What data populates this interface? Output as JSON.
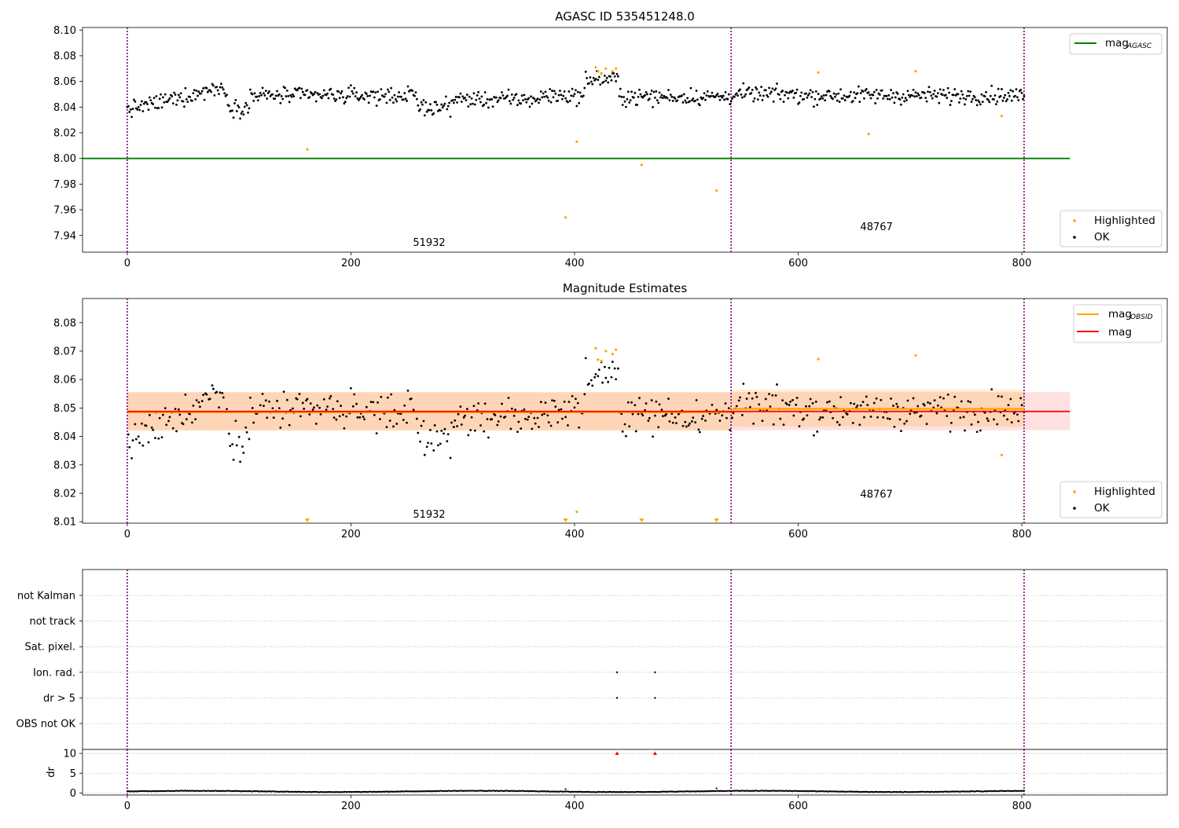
{
  "chart_data": [
    {
      "type": "scatter",
      "title": "AGASC ID 535451248.0",
      "x_ticks": [
        "0",
        "200",
        "400",
        "600",
        "800"
      ],
      "y_ticks": [
        "7.94",
        "7.96",
        "7.98",
        "8.00",
        "8.02",
        "8.04",
        "8.06",
        "8.08",
        "8.10"
      ],
      "xlim": [
        -40,
        930
      ],
      "ylim": [
        7.927,
        8.102
      ],
      "legend_lines": [
        {
          "name": "mag",
          "sub": "AGASC",
          "color": "#008000"
        }
      ],
      "legend_points": [
        {
          "name": "Highlighted",
          "color": "#ffa500"
        },
        {
          "name": "OK",
          "color": "#000000"
        }
      ],
      "agasc_mag": 8.0,
      "obsids": [
        {
          "label": "51932",
          "x": 270,
          "y": 7.932
        },
        {
          "label": "48767",
          "x": 670,
          "y": 7.944
        }
      ],
      "boundaries": [
        0,
        540,
        802
      ],
      "highlighted": [
        [
          161,
          8.007
        ],
        [
          392,
          7.954
        ],
        [
          402,
          8.013
        ],
        [
          460,
          7.995
        ],
        [
          527,
          7.975
        ],
        [
          419,
          8.071
        ],
        [
          421,
          8.068
        ],
        [
          424,
          8.066
        ],
        [
          428,
          8.07
        ],
        [
          434,
          8.068
        ],
        [
          437,
          8.07
        ],
        [
          618,
          8.067
        ],
        [
          663,
          8.019
        ],
        [
          705,
          8.068
        ],
        [
          782,
          8.033
        ]
      ]
    },
    {
      "type": "scatter",
      "title": "Magnitude Estimates",
      "x_ticks": [
        "0",
        "200",
        "400",
        "600",
        "800"
      ],
      "y_ticks": [
        "8.01",
        "8.02",
        "8.03",
        "8.04",
        "8.05",
        "8.06",
        "8.07",
        "8.08"
      ],
      "xlim": [
        -40,
        930
      ],
      "ylim": [
        8.0095,
        8.0885
      ],
      "legend_lines": [
        {
          "name": "mag",
          "sub": "OBSID",
          "color": "#ffa500"
        },
        {
          "name": "mag",
          "sub": "",
          "color": "#ff0000"
        }
      ],
      "legend_points": [
        {
          "name": "Highlighted",
          "color": "#ffa500"
        },
        {
          "name": "OK",
          "color": "#000000"
        }
      ],
      "mag": 8.0488,
      "mag_band": [
        8.0422,
        8.0556
      ],
      "obsid_mags": [
        {
          "x0": 0,
          "x1": 540,
          "mag": 8.0485,
          "lo": 8.042,
          "hi": 8.0555
        },
        {
          "x0": 540,
          "x1": 802,
          "mag": 8.0497,
          "lo": 8.0435,
          "hi": 8.0565
        }
      ],
      "obsids": [
        {
          "label": "51932",
          "x": 270,
          "y": 8.0115
        },
        {
          "label": "48767",
          "x": 670,
          "y": 8.0185
        }
      ],
      "boundaries": [
        0,
        540,
        802
      ],
      "highlighted": [
        [
          419,
          8.071
        ],
        [
          421,
          8.067
        ],
        [
          424,
          8.0665
        ],
        [
          428,
          8.07
        ],
        [
          434,
          8.069
        ],
        [
          437,
          8.0705
        ],
        [
          618,
          8.0672
        ],
        [
          663,
          8.019
        ],
        [
          705,
          8.0685
        ],
        [
          782,
          8.0335
        ],
        [
          402,
          8.0135
        ]
      ],
      "below_range": [
        161,
        392,
        460,
        527
      ]
    },
    {
      "type": "scatter",
      "title": "",
      "ylabel": "dr",
      "x_ticks": [
        "0",
        "200",
        "400",
        "600",
        "800"
      ],
      "flag_rows": [
        "not Kalman",
        "not track",
        "Sat. pixel.",
        "Ion. rad.",
        "dr > 5",
        "OBS not OK"
      ],
      "dr_ticks": [
        "0",
        "5",
        "10"
      ],
      "xlim": [
        -40,
        930
      ],
      "dr_lim": [
        -0.5,
        11
      ],
      "boundaries": [
        0,
        540,
        802
      ],
      "flag_points": [
        {
          "row": "Ion. rad.",
          "x": [
            438,
            472
          ]
        },
        {
          "row": "dr > 5",
          "x": [
            438,
            472
          ]
        }
      ],
      "dr_outliers": [
        [
          438,
          10
        ],
        [
          472,
          10
        ]
      ],
      "dr_spikes": [
        [
          392,
          1.0
        ],
        [
          527,
          1.2
        ]
      ]
    }
  ]
}
